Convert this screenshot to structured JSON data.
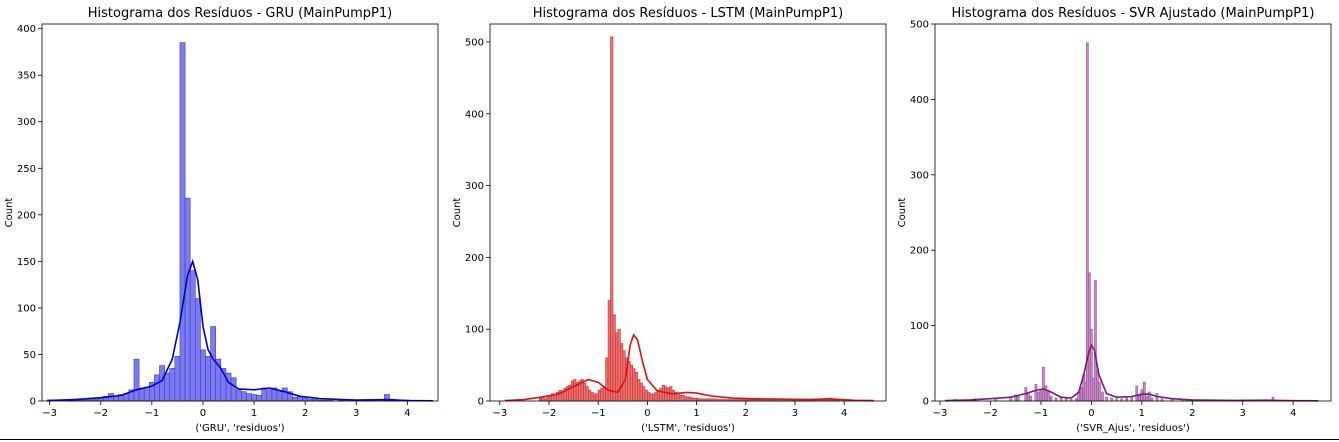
{
  "chart_data": [
    {
      "type": "histogram",
      "title": "Histograma dos Resíduos - GRU (MainPumpP1)",
      "xlabel": "('GRU', 'residuos')",
      "ylabel": "Count",
      "xlim": [
        -3.15,
        4.6
      ],
      "ylim": [
        0,
        405
      ],
      "xticks": [
        -3,
        -2,
        -1,
        0,
        1,
        2,
        3,
        4
      ],
      "yticks": [
        0,
        50,
        100,
        150,
        200,
        250,
        300,
        350,
        400
      ],
      "grid": false,
      "kde": true,
      "bar_color": "#7b7bf0",
      "edge_color": "#3c3cc8",
      "kde_color": "#0000cc",
      "bin_start": -3.05,
      "bin_width": 0.1,
      "counts": [
        1,
        0,
        0,
        0,
        1,
        2,
        1,
        2,
        3,
        2,
        3,
        5,
        8,
        5,
        7,
        8,
        12,
        45,
        14,
        15,
        20,
        28,
        38,
        30,
        35,
        48,
        385,
        218,
        140,
        110,
        55,
        48,
        80,
        45,
        35,
        30,
        25,
        12,
        10,
        8,
        7,
        6,
        14,
        12,
        14,
        10,
        14,
        10,
        4,
        5,
        3,
        2,
        2,
        1,
        1,
        1,
        0,
        1,
        0,
        0,
        0,
        0,
        1,
        0,
        0,
        0,
        7,
        2,
        0,
        0,
        1,
        0,
        0,
        0,
        0,
        0,
        0
      ],
      "kde_points": [
        [
          -3.05,
          0.5
        ],
        [
          -2.5,
          1.5
        ],
        [
          -2.0,
          3.5
        ],
        [
          -1.6,
          6
        ],
        [
          -1.3,
          12
        ],
        [
          -1.0,
          16
        ],
        [
          -0.8,
          22
        ],
        [
          -0.6,
          45
        ],
        [
          -0.45,
          85
        ],
        [
          -0.3,
          135
        ],
        [
          -0.2,
          150
        ],
        [
          -0.1,
          130
        ],
        [
          0.0,
          80
        ],
        [
          0.1,
          55
        ],
        [
          0.2,
          45
        ],
        [
          0.35,
          35
        ],
        [
          0.5,
          20
        ],
        [
          0.7,
          13
        ],
        [
          1.0,
          12
        ],
        [
          1.3,
          14
        ],
        [
          1.6,
          10
        ],
        [
          1.9,
          5
        ],
        [
          2.3,
          2.5
        ],
        [
          3.0,
          1
        ],
        [
          3.6,
          1.5
        ],
        [
          4.0,
          0.5
        ],
        [
          4.5,
          0.2
        ]
      ]
    },
    {
      "type": "histogram",
      "title": "Histograma dos Resíduos - LSTM (MainPumpP1)",
      "xlabel": "('LSTM', 'residuos')",
      "ylabel": "Count",
      "xlim": [
        -3.2,
        4.85
      ],
      "ylim": [
        0,
        525
      ],
      "xticks": [
        -3,
        -2,
        -1,
        0,
        1,
        2,
        3,
        4
      ],
      "yticks": [
        0,
        100,
        200,
        300,
        400,
        500
      ],
      "grid": false,
      "kde": true,
      "bar_color": "#ec7070",
      "edge_color": "#c83232",
      "kde_color": "#dd1111",
      "bin_start": -2.2,
      "bin_width": 0.05,
      "counts": [
        4,
        6,
        3,
        5,
        8,
        10,
        8,
        12,
        15,
        14,
        18,
        20,
        22,
        28,
        30,
        26,
        28,
        30,
        25,
        20,
        15,
        12,
        10,
        10,
        15,
        18,
        20,
        60,
        140,
        507,
        120,
        95,
        100,
        80,
        70,
        60,
        55,
        50,
        45,
        40,
        30,
        25,
        20,
        15,
        12,
        10,
        10,
        12,
        15,
        18,
        22,
        20,
        18,
        20,
        15,
        12,
        10,
        8,
        8,
        6,
        6,
        5,
        4,
        4,
        4,
        3,
        3,
        3,
        3,
        3,
        3,
        3,
        2,
        2,
        2,
        2,
        2,
        2,
        2,
        2,
        2,
        2,
        2,
        2,
        2,
        2,
        2,
        2,
        2,
        2,
        2,
        2,
        2,
        2,
        2,
        2,
        2,
        2,
        2,
        2,
        2,
        2,
        2,
        2,
        2,
        2,
        2,
        2,
        2,
        2,
        2,
        2,
        2,
        2,
        2,
        2,
        2,
        2,
        4,
        3,
        2,
        1
      ],
      "kde_points": [
        [
          -2.9,
          0.5
        ],
        [
          -2.5,
          2
        ],
        [
          -2.1,
          6
        ],
        [
          -1.8,
          10
        ],
        [
          -1.5,
          20
        ],
        [
          -1.2,
          30
        ],
        [
          -1.0,
          26
        ],
        [
          -0.8,
          15
        ],
        [
          -0.6,
          12
        ],
        [
          -0.45,
          30
        ],
        [
          -0.35,
          78
        ],
        [
          -0.28,
          92
        ],
        [
          -0.2,
          85
        ],
        [
          -0.1,
          55
        ],
        [
          0.0,
          30
        ],
        [
          0.2,
          14
        ],
        [
          0.5,
          10
        ],
        [
          0.8,
          12
        ],
        [
          1.0,
          11
        ],
        [
          1.3,
          7
        ],
        [
          1.7,
          4
        ],
        [
          2.2,
          3
        ],
        [
          2.8,
          2.5
        ],
        [
          3.3,
          2
        ],
        [
          3.7,
          3
        ],
        [
          4.2,
          1
        ],
        [
          4.6,
          0.5
        ]
      ]
    },
    {
      "type": "histogram",
      "title": "Histograma dos Resíduos - SVR Ajustado (MainPumpP1)",
      "xlabel": "('SVR_Ajus', 'residuos')",
      "ylabel": "Count",
      "xlim": [
        -3.1,
        4.75
      ],
      "ylim": [
        0,
        500
      ],
      "xticks": [
        -3,
        -2,
        -1,
        0,
        1,
        2,
        3,
        4
      ],
      "yticks": [
        0,
        100,
        200,
        300,
        400,
        500
      ],
      "grid": false,
      "kde": true,
      "bar_color": "#c88ac8",
      "edge_color": "#9b4f9b",
      "kde_color": "#7a1a7a",
      "bins": [
        [
          -2.7,
          2
        ],
        [
          -2.3,
          3
        ],
        [
          -1.9,
          3
        ],
        [
          -1.6,
          5
        ],
        [
          -1.5,
          8
        ],
        [
          -1.45,
          6
        ],
        [
          -1.3,
          18
        ],
        [
          -1.25,
          10
        ],
        [
          -1.2,
          6
        ],
        [
          -1.1,
          22
        ],
        [
          -1.05,
          12
        ],
        [
          -1.0,
          15
        ],
        [
          -0.95,
          45
        ],
        [
          -0.9,
          20
        ],
        [
          -0.85,
          14
        ],
        [
          -0.8,
          6
        ],
        [
          -0.7,
          4
        ],
        [
          -0.6,
          5
        ],
        [
          -0.5,
          4
        ],
        [
          -0.4,
          2
        ],
        [
          -0.3,
          3
        ],
        [
          -0.25,
          12
        ],
        [
          -0.2,
          18
        ],
        [
          -0.15,
          35
        ],
        [
          -0.12,
          25
        ],
        [
          -0.08,
          475
        ],
        [
          -0.04,
          170
        ],
        [
          0.0,
          95
        ],
        [
          0.04,
          30
        ],
        [
          0.08,
          160
        ],
        [
          0.12,
          40
        ],
        [
          0.16,
          25
        ],
        [
          0.22,
          12
        ],
        [
          0.3,
          5
        ],
        [
          0.4,
          4
        ],
        [
          0.5,
          3
        ],
        [
          0.6,
          3
        ],
        [
          0.7,
          4
        ],
        [
          0.8,
          6
        ],
        [
          0.9,
          20
        ],
        [
          0.95,
          8
        ],
        [
          1.0,
          15
        ],
        [
          1.05,
          25
        ],
        [
          1.1,
          6
        ],
        [
          1.15,
          12
        ],
        [
          1.2,
          4
        ],
        [
          1.3,
          10
        ],
        [
          1.4,
          3
        ],
        [
          1.6,
          2
        ],
        [
          1.8,
          2
        ],
        [
          2.0,
          1
        ],
        [
          2.4,
          1
        ],
        [
          3.6,
          5
        ],
        [
          4.3,
          1
        ]
      ],
      "bin_width": 0.04,
      "kde_points": [
        [
          -2.9,
          0.5
        ],
        [
          -2.4,
          1.5
        ],
        [
          -2.0,
          3
        ],
        [
          -1.6,
          5
        ],
        [
          -1.3,
          10
        ],
        [
          -1.1,
          14
        ],
        [
          -0.95,
          16
        ],
        [
          -0.8,
          12
        ],
        [
          -0.6,
          5
        ],
        [
          -0.4,
          4
        ],
        [
          -0.25,
          12
        ],
        [
          -0.15,
          35
        ],
        [
          -0.05,
          65
        ],
        [
          0.0,
          74
        ],
        [
          0.06,
          68
        ],
        [
          0.15,
          35
        ],
        [
          0.3,
          10
        ],
        [
          0.5,
          5
        ],
        [
          0.8,
          6
        ],
        [
          1.0,
          9
        ],
        [
          1.15,
          9
        ],
        [
          1.3,
          6
        ],
        [
          1.6,
          3
        ],
        [
          2.0,
          1.5
        ],
        [
          2.8,
          0.8
        ],
        [
          3.5,
          1
        ],
        [
          4.0,
          0.4
        ],
        [
          4.5,
          0.2
        ]
      ]
    }
  ]
}
